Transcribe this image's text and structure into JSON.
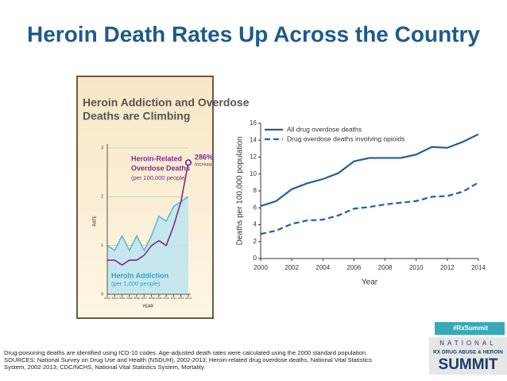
{
  "title": "Heroin Death Rates Up Across the Country",
  "footnote": [
    "Drug-poisoning deaths are identified using ICD-10 codes.  Age-adjusted death rates were calculated using the 2000 standard population.",
    "SOURCES: National Survey on Drug Use and Health (NSDUH), 2002-2013; Heroin-related drug overdose deaths, National Vital Statistics",
    "System, 2002-2013; CDC/NCHS, National Vital Statistics System, Mortality."
  ],
  "logo": {
    "hashtag": "#RxSummit",
    "line1": "NATIONAL",
    "line2": "RX DRUG ABUSE & HEROIN",
    "line3": "SUMMIT"
  },
  "chart_data": [
    {
      "type": "line",
      "title": [
        "Heroin Addiction and Overdose",
        "Deaths are Climbing"
      ],
      "x_label": "YEAR",
      "y_label": "RATE",
      "x": [
        2002,
        2003,
        2004,
        2005,
        2006,
        2007,
        2008,
        2009,
        2010,
        2011,
        2012,
        2013
      ],
      "xlim": [
        2002,
        2013
      ],
      "xticks": [
        2002,
        2003,
        2004,
        2005,
        2006,
        2007,
        2008,
        2009,
        2010,
        2011,
        2012,
        2013
      ],
      "ylim": [
        0,
        3
      ],
      "yticks": [
        0,
        1,
        2,
        3
      ],
      "grid": true,
      "annotation": [
        "286%",
        "increase"
      ],
      "series": [
        {
          "name": [
            "Heroin Addiction",
            "(per 1,000 people)"
          ],
          "color": "#5bbccc",
          "area": true,
          "values": [
            1.0,
            0.9,
            1.2,
            0.9,
            1.2,
            0.9,
            1.2,
            1.6,
            1.5,
            1.8,
            1.9,
            2.0
          ]
        },
        {
          "name": [
            "Heroin-Related",
            "Overdose Deaths",
            "(per 100,000 people)"
          ],
          "color": "#7b2d8e",
          "values": [
            0.7,
            0.7,
            0.6,
            0.7,
            0.7,
            0.8,
            1.0,
            1.1,
            1.0,
            1.4,
            1.9,
            2.7
          ]
        }
      ]
    },
    {
      "type": "line",
      "x_label": "Year",
      "y_label": "Deaths per 100,000 population",
      "x": [
        2000,
        2001,
        2002,
        2003,
        2004,
        2005,
        2006,
        2007,
        2008,
        2009,
        2010,
        2011,
        2012,
        2013,
        2014
      ],
      "xlim": [
        2000,
        2014
      ],
      "xticks": [
        2000,
        2002,
        2004,
        2006,
        2008,
        2010,
        2012,
        2014
      ],
      "ylim": [
        0,
        16
      ],
      "yticks": [
        0,
        2,
        4,
        6,
        8,
        10,
        12,
        14,
        16
      ],
      "grid": false,
      "legend": "top-left",
      "series": [
        {
          "name": "All drug overdose deaths",
          "color": "#1f5fa0",
          "values": [
            6.2,
            6.8,
            8.2,
            8.9,
            9.4,
            10.1,
            11.5,
            11.9,
            11.9,
            11.9,
            12.3,
            13.2,
            13.1,
            13.8,
            14.7
          ]
        },
        {
          "name": "Drug overdose deaths involving opioids",
          "color": "#1f5fa0",
          "dash": true,
          "values": [
            2.9,
            3.3,
            4.1,
            4.5,
            4.6,
            5.1,
            5.9,
            6.1,
            6.4,
            6.6,
            6.8,
            7.3,
            7.4,
            7.9,
            9.0
          ]
        }
      ]
    }
  ]
}
